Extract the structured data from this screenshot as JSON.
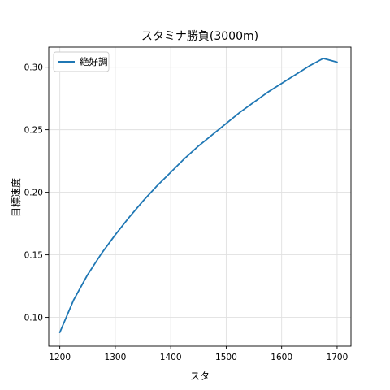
{
  "chart_data": {
    "type": "line",
    "title": "スタミナ勝負(3000m)",
    "xlabel": "スタ",
    "ylabel": "目標速度",
    "xlim": [
      1180,
      1725
    ],
    "ylim": [
      0.077,
      0.316
    ],
    "xticks": [
      1200,
      1300,
      1400,
      1500,
      1600,
      1700
    ],
    "yticks": [
      0.1,
      0.15,
      0.2,
      0.25,
      0.3
    ],
    "grid": true,
    "legend_position": "top-left",
    "series": [
      {
        "name": "絶好調",
        "color": "#1f77b4",
        "x": [
          1200,
          1225,
          1250,
          1275,
          1300,
          1325,
          1350,
          1375,
          1400,
          1425,
          1450,
          1475,
          1500,
          1525,
          1550,
          1575,
          1600,
          1625,
          1650,
          1675,
          1700
        ],
        "y": [
          0.088,
          0.114,
          0.134,
          0.151,
          0.166,
          0.18,
          0.193,
          0.205,
          0.216,
          0.227,
          0.237,
          0.246,
          0.255,
          0.264,
          0.272,
          0.28,
          0.287,
          0.294,
          0.301,
          0.307,
          0.304
        ]
      }
    ]
  }
}
